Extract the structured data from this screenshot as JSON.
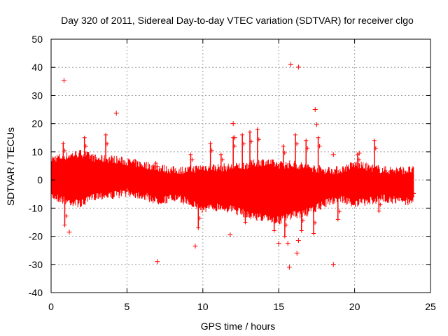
{
  "chart_data": {
    "type": "scatter",
    "title": "Day 320 of 2011, Sidereal Day-to-day VTEC variation (SDTVAR) for receiver clgo",
    "xlabel": "GPS time / hours",
    "ylabel": "SDTVAR / TECUs",
    "xlim": [
      0,
      25
    ],
    "ylim": [
      -40,
      50
    ],
    "xticks": [
      "0",
      "5",
      "10",
      "15",
      "20",
      "25"
    ],
    "yticks": [
      "-40",
      "-30",
      "-20",
      "-10",
      "0",
      "10",
      "20",
      "30",
      "40",
      "50"
    ],
    "grid": true,
    "marker": "+",
    "color": "#ff0000",
    "band": [
      [
        0.0,
        -4,
        6
      ],
      [
        1.0,
        -6,
        7
      ],
      [
        2.0,
        -7,
        8
      ],
      [
        3.0,
        -4,
        6
      ],
      [
        4.0,
        -4,
        6
      ],
      [
        5.0,
        -3,
        5
      ],
      [
        6.0,
        -4,
        4
      ],
      [
        7.0,
        -6,
        3
      ],
      [
        8.0,
        -5,
        2
      ],
      [
        9.0,
        -6,
        2
      ],
      [
        10.0,
        -9,
        3
      ],
      [
        11.0,
        -8,
        3
      ],
      [
        12.0,
        -9,
        3
      ],
      [
        13.0,
        -11,
        4
      ],
      [
        14.0,
        -12,
        5
      ],
      [
        15.0,
        -13,
        4
      ],
      [
        16.0,
        -11,
        4
      ],
      [
        17.0,
        -10,
        3
      ],
      [
        18.0,
        -7,
        2
      ],
      [
        19.0,
        -5,
        2
      ],
      [
        20.0,
        -7,
        4
      ],
      [
        21.0,
        -6,
        3
      ],
      [
        22.0,
        -5,
        2
      ],
      [
        23.0,
        -6,
        2
      ],
      [
        23.9,
        -6,
        2
      ]
    ],
    "spikes": [
      [
        0.8,
        13
      ],
      [
        2.2,
        15
      ],
      [
        3.6,
        16
      ],
      [
        6.9,
        6
      ],
      [
        9.2,
        9
      ],
      [
        10.5,
        13
      ],
      [
        11.2,
        9
      ],
      [
        12.0,
        15
      ],
      [
        12.6,
        16
      ],
      [
        13.1,
        17
      ],
      [
        13.6,
        18
      ],
      [
        15.3,
        12
      ],
      [
        16.1,
        16
      ],
      [
        16.8,
        14
      ],
      [
        17.6,
        15
      ],
      [
        20.2,
        9
      ],
      [
        21.3,
        14
      ],
      [
        0.9,
        -16
      ],
      [
        9.7,
        -17
      ],
      [
        12.8,
        -15
      ],
      [
        14.7,
        -18
      ],
      [
        15.4,
        -20
      ],
      [
        16.5,
        -18
      ],
      [
        17.3,
        -19
      ],
      [
        18.9,
        -14
      ],
      [
        21.6,
        -11
      ],
      [
        23.8,
        -6
      ]
    ],
    "outliers": [
      [
        0.85,
        35.3
      ],
      [
        4.3,
        23.7
      ],
      [
        15.8,
        41.0
      ],
      [
        16.3,
        40.1
      ],
      [
        17.4,
        25.0
      ],
      [
        17.5,
        19.7
      ],
      [
        12.0,
        20.0
      ],
      [
        12.1,
        15.0
      ],
      [
        1.2,
        -18.5
      ],
      [
        9.5,
        -23.5
      ],
      [
        7.0,
        -29.0
      ],
      [
        11.8,
        -19.5
      ],
      [
        15.0,
        -22.5
      ],
      [
        15.6,
        -22.5
      ],
      [
        15.7,
        -31.0
      ],
      [
        16.2,
        -26.0
      ],
      [
        16.3,
        -21.5
      ],
      [
        18.6,
        -30.0
      ],
      [
        18.6,
        9.0
      ],
      [
        20.3,
        9.5
      ]
    ]
  }
}
